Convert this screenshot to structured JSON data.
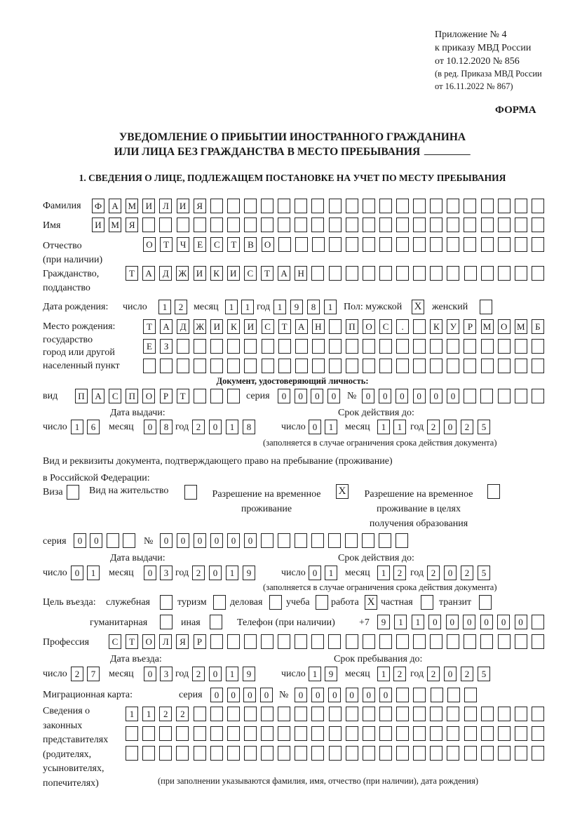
{
  "header": {
    "appendix": [
      "Приложение № 4",
      "к приказу МВД России",
      "от 10.12.2020 № 856"
    ],
    "edition": [
      "(в ред. Приказа МВД России",
      "от 16.11.2022 № 867)"
    ],
    "form_label": "ФОРМА",
    "title": [
      "УВЕДОМЛЕНИЕ О ПРИБЫТИИ ИНОСТРАННОГО ГРАЖДАНИНА",
      "ИЛИ ЛИЦА БЕЗ ГРАЖДАНСТВА В МЕСТО ПРЕБЫВАНИЯ"
    ]
  },
  "section1": {
    "title": "1. СВЕДЕНИЯ О ЛИЦЕ, ПОДЛЕЖАЩЕМ ПОСТАНОВКЕ НА УЧЕТ ПО МЕСТУ ПРЕБЫВАНИЯ",
    "surname": {
      "label": "Фамилия",
      "value": "ФАМИЛИЯ                    "
    },
    "name": {
      "label": "Имя",
      "value": "ИМЯ                        "
    },
    "patronymic": {
      "label": [
        "Отчество",
        "(при наличии)"
      ],
      "value": "ОТЧЕСТВО                "
    },
    "citizenship": {
      "label": [
        "Гражданство,",
        "подданство"
      ],
      "value": "ТАДЖИКИСТАН              "
    },
    "birth_date": {
      "label": "Дата рождения:",
      "day_label": "число",
      "month_label": "месяц",
      "year_label": "год",
      "day": "12",
      "month": "11",
      "year": "1981"
    },
    "sex": {
      "label": "Пол: мужской",
      "male": "X",
      "female_label": "женский",
      "female": ""
    },
    "birth_place": {
      "label": [
        "Место рождения:",
        "государство",
        "город или другой",
        "населенный пункт"
      ],
      "rows": [
        "ТАДЖИКИСТАН ПОС. КУРМОМБ",
        "ЕЗ                      ",
        "                        "
      ]
    },
    "identity_doc": {
      "heading": "Документ, удостоверяющий личность:",
      "type_label": "вид",
      "type": "ПАСПОРТ   ",
      "series_label": "серия",
      "series": "0000",
      "number_label": "№",
      "number": "000000     ",
      "issue_label": "Дата выдачи:",
      "expiry_label": "Срок действия до:",
      "day_label": "число",
      "month_label": "месяц",
      "year_label": "год",
      "issue": {
        "day": "16",
        "month": "08",
        "year": "2018"
      },
      "expiry": {
        "day": "01",
        "month": "11",
        "year": "2025"
      },
      "note": "(заполняется в случае ограничения срока действия документа)"
    },
    "stay_doc": {
      "heading": [
        "Вид и реквизиты документа, подтверждающего право на пребывание (проживание)",
        "в Российской Федерации:"
      ],
      "visa_label": "Виза",
      "visa": "",
      "residence_label": "Вид на жительство",
      "residence": "",
      "trp_label": [
        "Разрешение на временное",
        "проживание"
      ],
      "trp": "X",
      "trp_edu_label": [
        "Разрешение на временное",
        "проживание в целях",
        "получения образования"
      ],
      "trp_edu": "",
      "series_label": "серия",
      "series": "00  ",
      "number_label": "№",
      "number": "000000         ",
      "issue_label": "Дата выдачи:",
      "expiry_label": "Срок действия до:",
      "day_label": "число",
      "month_label": "месяц",
      "year_label": "год",
      "issue": {
        "day": "01",
        "month": "03",
        "year": "2019"
      },
      "expiry": {
        "day": "01",
        "month": "12",
        "year": "2025"
      },
      "note": "(заполняется в случае ограничения срока действия документа)"
    },
    "purpose": {
      "label": "Цель въезда:",
      "options": [
        {
          "label": "служебная",
          "value": ""
        },
        {
          "label": "туризм",
          "value": ""
        },
        {
          "label": "деловая",
          "value": ""
        },
        {
          "label": "учеба",
          "value": ""
        },
        {
          "label": "работа",
          "value": "X"
        },
        {
          "label": "частная",
          "value": ""
        },
        {
          "label": "транзит",
          "value": ""
        },
        {
          "label": "гуманитарная",
          "value": ""
        },
        {
          "label": "иная",
          "value": ""
        }
      ]
    },
    "phone": {
      "label": "Телефон (при наличии)",
      "prefix": "+7",
      "value": "911000000 "
    },
    "profession": {
      "label": "Профессия",
      "value": "СТОЛЯР                    "
    },
    "entry": {
      "entry_label": "Дата въезда:",
      "stay_label": "Срок пребывания до:",
      "day_label": "число",
      "month_label": "месяц",
      "year_label": "год",
      "entry": {
        "day": "27",
        "month": "03",
        "year": "2019"
      },
      "stay_until": {
        "day": "19",
        "month": "12",
        "year": "2025"
      }
    },
    "migration_card": {
      "label": "Миграционная карта:",
      "series_label": "серия",
      "series": "0000",
      "number_label": "№",
      "number": "000000     "
    },
    "representatives": {
      "label": [
        "Сведения о",
        "законных",
        "представителях",
        "(родителях,",
        "усыновителях,",
        "попечителях)"
      ],
      "rows": [
        "1122                     ",
        "                         ",
        "                         "
      ],
      "note": "(при заполнении указываются фамилия, имя, отчество (при наличии), дата рождения)"
    }
  }
}
